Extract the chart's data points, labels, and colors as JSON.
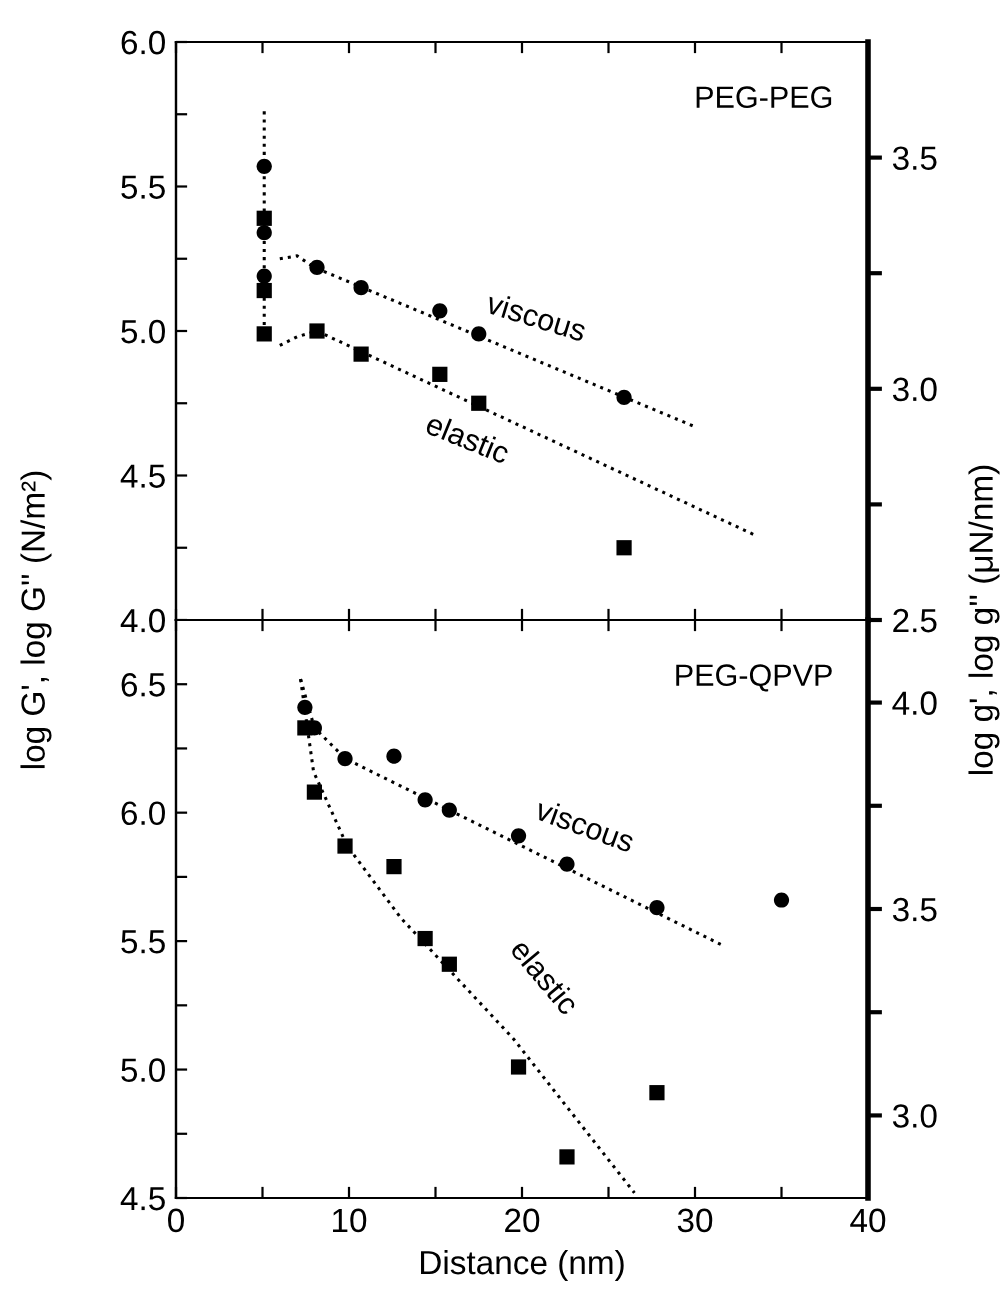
{
  "chart_data": [
    {
      "type": "scatter",
      "xlim": [
        0,
        40
      ],
      "xticks": [
        {
          "value": 0,
          "label": null
        },
        {
          "value": 5,
          "label": null
        },
        {
          "value": 10,
          "label": null
        },
        {
          "value": 15,
          "label": null
        },
        {
          "value": 20,
          "label": null
        },
        {
          "value": 25,
          "label": null
        },
        {
          "value": 30,
          "label": null
        },
        {
          "value": 35,
          "label": null
        },
        {
          "value": 40,
          "label": null
        }
      ],
      "ylim": [
        4.0,
        6.0
      ],
      "yticks": [
        {
          "value": 4,
          "label": "4.0"
        },
        {
          "value": 4.25,
          "label": null
        },
        4.5,
        {
          "value": 4.75,
          "label": null
        },
        {
          "value": 5,
          "label": "5.0"
        },
        {
          "value": 5.25,
          "label": null
        },
        5.5,
        {
          "value": 5.75,
          "label": null
        },
        {
          "value": 6,
          "label": "6.0"
        }
      ],
      "y2lim": [
        2.5,
        3.75
      ],
      "y2ticks": [
        {
          "value": 2.5,
          "label": "2.5"
        },
        {
          "value": 2.75,
          "label": null
        },
        {
          "value": 3,
          "label": "3.0"
        },
        {
          "value": 3.25,
          "label": null
        },
        {
          "value": 3.5,
          "label": "3.5"
        }
      ],
      "ylabel": "log G', log G'' (N/m²)",
      "y2label": "log g', log g'' (μN/nm)",
      "tick_labels": "y",
      "grid": false,
      "legend": false,
      "annotations": [
        "PEG-PEG",
        "viscous",
        "elastic"
      ],
      "series": [
        {
          "marker": "circle",
          "color": "#000000",
          "x": [
            5.1,
            5.1,
            5.1,
            8.15,
            10.7,
            15.25,
            17.5,
            25.9
          ],
          "values": [
            5.57,
            5.34,
            5.19,
            5.22,
            5.15,
            5.07,
            4.99,
            4.77
          ]
        },
        {
          "marker": "square",
          "color": "#000000",
          "x": [
            5.1,
            5.1,
            5.1,
            8.15,
            10.7,
            15.25,
            17.5,
            25.9
          ],
          "values": [
            5.39,
            5.14,
            4.99,
            5.0,
            4.92,
            4.85,
            4.75,
            4.25
          ]
        },
        {
          "type": "line",
          "line_style": "dotted",
          "marker": "none",
          "color": "#000000",
          "x": [
            5.1,
            5.1
          ],
          "values": [
            5.76,
            4.99
          ]
        },
        {
          "type": "line",
          "line_style": "dotted",
          "marker": "none",
          "color": "#000000",
          "x": [
            6.0,
            7.0,
            8.0,
            29.95
          ],
          "values": [
            5.25,
            5.26,
            5.22,
            4.67
          ]
        },
        {
          "type": "line",
          "line_style": "dotted",
          "marker": "none",
          "color": "#000000",
          "x": [
            6.0,
            7.0,
            8.15,
            33.6
          ],
          "values": [
            4.95,
            4.98,
            5.0,
            4.29
          ]
        }
      ]
    },
    {
      "type": "scatter",
      "xlim": [
        0,
        40
      ],
      "xticks": [
        0,
        {
          "value": 5,
          "label": null
        },
        10,
        {
          "value": 15,
          "label": null
        },
        20,
        {
          "value": 25,
          "label": null
        },
        30,
        {
          "value": 35,
          "label": null
        },
        40
      ],
      "ylim": [
        4.5,
        6.75
      ],
      "yticks": [
        4.5,
        {
          "value": 4.75,
          "label": null
        },
        {
          "value": 5,
          "label": "5.0"
        },
        {
          "value": 5.25,
          "label": null
        },
        5.5,
        {
          "value": 5.75,
          "label": null
        },
        {
          "value": 6,
          "label": "6.0"
        },
        {
          "value": 6.25,
          "label": null
        },
        6.5
      ],
      "y2lim": [
        2.8,
        4.2
      ],
      "y2ticks": [
        {
          "value": 3,
          "label": "3.0"
        },
        {
          "value": 3.25,
          "label": null
        },
        {
          "value": 3.5,
          "label": "3.5"
        },
        {
          "value": 3.75,
          "label": null
        },
        {
          "value": 4,
          "label": "4.0"
        }
      ],
      "xlabel": "Distance (nm)",
      "grid": false,
      "legend": false,
      "annotations": [
        "PEG-QPVP",
        "viscous",
        "elastic"
      ],
      "series": [
        {
          "marker": "circle",
          "color": "#000000",
          "x": [
            7.45,
            8.0,
            9.77,
            12.6,
            14.4,
            15.8,
            19.8,
            22.6,
            27.8,
            35.0
          ],
          "values": [
            6.41,
            6.33,
            6.21,
            6.22,
            6.05,
            6.01,
            5.91,
            5.8,
            5.63,
            5.66
          ]
        },
        {
          "marker": "square",
          "color": "#000000",
          "x": [
            7.45,
            8.0,
            9.77,
            12.6,
            14.4,
            15.8,
            19.8,
            22.6,
            27.8
          ],
          "values": [
            6.33,
            6.08,
            5.87,
            5.79,
            5.51,
            5.41,
            5.01,
            4.66,
            4.91
          ]
        },
        {
          "type": "line",
          "line_style": "dotted",
          "marker": "none",
          "color": "#000000",
          "x": [
            7.2,
            8.0,
            9.8,
            31.7
          ],
          "values": [
            6.52,
            6.33,
            6.21,
            5.48
          ]
        },
        {
          "type": "line",
          "line_style": "dotted",
          "marker": "none",
          "color": "#000000",
          "x": [
            7.2,
            7.95,
            9.9,
            13.0,
            19.5,
            26.5
          ],
          "values": [
            6.52,
            6.16,
            5.87,
            5.59,
            5.12,
            4.52
          ]
        }
      ]
    }
  ]
}
